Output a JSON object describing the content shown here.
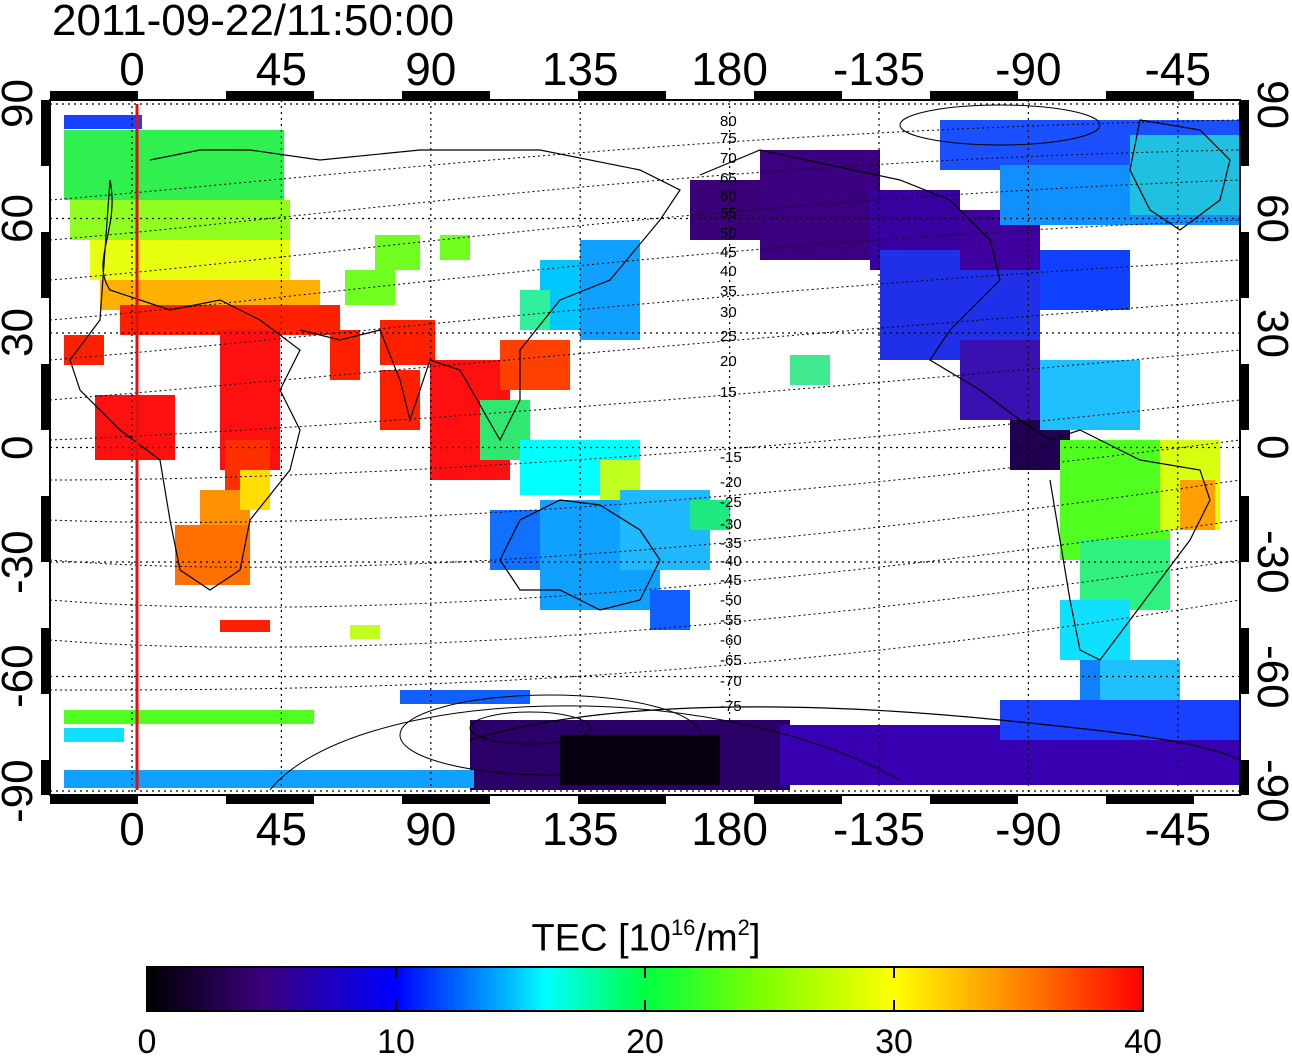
{
  "title": "2011-09-22/11:50:00",
  "map": {
    "top_axis_labels": [
      "0",
      "45",
      "90",
      "135",
      "180",
      "-135",
      "-90",
      "-45"
    ],
    "bottom_axis_labels": [
      "0",
      "45",
      "90",
      "135",
      "180",
      "-135",
      "-90",
      "-45"
    ],
    "left_axis_labels": [
      "90",
      "60",
      "30",
      "0",
      "-30",
      "-60",
      "-90"
    ],
    "right_axis_labels": [
      "90",
      "60",
      "30",
      "0",
      "-30",
      "-60",
      "-90"
    ],
    "contour_labels": [
      "80",
      "75",
      "70",
      "65",
      "60",
      "55",
      "50",
      "45",
      "40",
      "35",
      "30",
      "25",
      "20",
      "15",
      "-15",
      "-20",
      "-25",
      "-30",
      "-35",
      "-40",
      "-45",
      "-50",
      "-55",
      "-60",
      "-65",
      "-70",
      "-75"
    ],
    "marker_line_color": "#e01010"
  },
  "colorbar": {
    "label_prefix": "TEC  [10",
    "label_exp1": "16",
    "label_mid": "/m",
    "label_exp2": "2",
    "label_suffix": "]",
    "ticks": [
      "0",
      "10",
      "20",
      "30",
      "40"
    ],
    "colors": [
      "#000000",
      "#3b0080",
      "#0000ff",
      "#00b4ff",
      "#00ffff",
      "#00ff40",
      "#80ff00",
      "#ffff00",
      "#ff8000",
      "#ff0000"
    ]
  },
  "chart_data": {
    "type": "heatmap",
    "title": "2011-09-22/11:50:00",
    "x_ticks_geographic_longitude": [
      0,
      45,
      90,
      135,
      180,
      -135,
      -90,
      -45
    ],
    "y_ticks_geographic_latitude": [
      90,
      60,
      30,
      0,
      -30,
      -60,
      -90
    ],
    "colorbar_label": "TEC [10^16/m^2]",
    "colorbar_range": [
      0,
      40
    ],
    "colorbar_ticks": [
      0,
      10,
      20,
      30,
      40
    ],
    "regions": [
      {
        "lon_range": [
          -25,
          30
        ],
        "lat_range": [
          35,
          88
        ],
        "tec": 22
      },
      {
        "lon_range": [
          -20,
          75
        ],
        "lat_range": [
          20,
          35
        ],
        "tec": 39
      },
      {
        "lon_range": [
          10,
          45
        ],
        "lat_range": [
          -10,
          20
        ],
        "tec": 39
      },
      {
        "lon_range": [
          15,
          40
        ],
        "lat_range": [
          -35,
          -20
        ],
        "tec": 33
      },
      {
        "lon_range": [
          95,
          130
        ],
        "lat_range": [
          -10,
          30
        ],
        "tec": 38
      },
      {
        "lon_range": [
          110,
          155
        ],
        "lat_range": [
          -45,
          -10
        ],
        "tec": 14
      },
      {
        "lon_range": [
          115,
          180
        ],
        "lat_range": [
          -88,
          -70
        ],
        "tec": 3
      },
      {
        "lon_range": [
          -180,
          -100
        ],
        "lat_range": [
          55,
          80
        ],
        "tec": 4
      },
      {
        "lon_range": [
          -125,
          -70
        ],
        "lat_range": [
          20,
          55
        ],
        "tec": 9
      },
      {
        "lon_range": [
          -70,
          -30
        ],
        "lat_range": [
          50,
          85
        ],
        "tec": 14
      },
      {
        "lon_range": [
          -80,
          -35
        ],
        "lat_range": [
          -55,
          10
        ],
        "tec": 24
      },
      {
        "lon_range": [
          -180,
          -40
        ],
        "lat_range": [
          -85,
          -70
        ],
        "tec": 6
      }
    ]
  }
}
